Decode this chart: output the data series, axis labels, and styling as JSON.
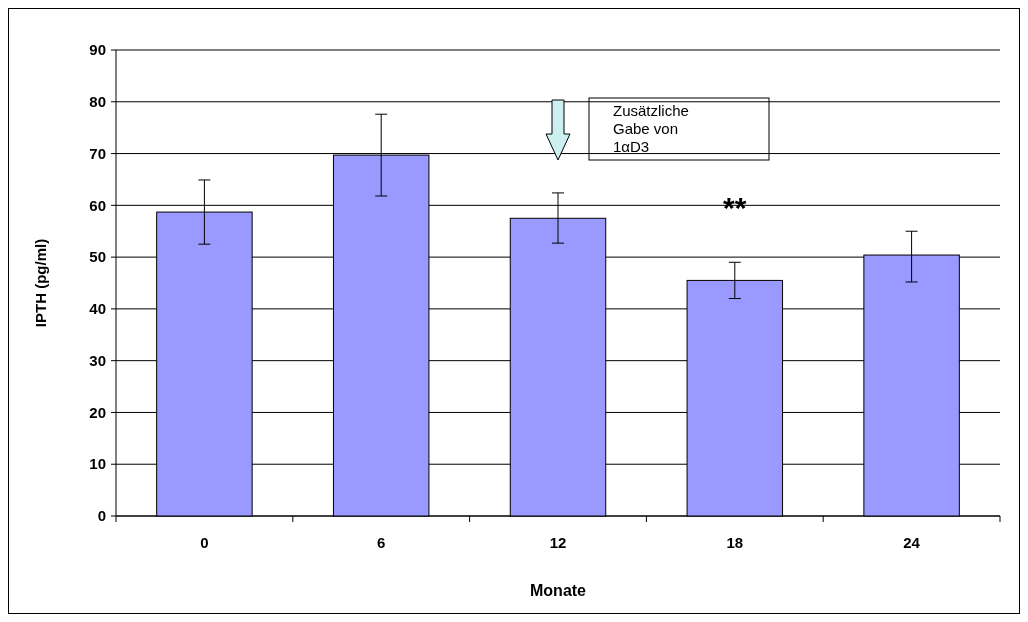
{
  "chart_data": {
    "type": "bar",
    "xlabel": "Monate",
    "ylabel": "IPTH (pg/ml)",
    "categories": [
      "0",
      "6",
      "12",
      "18",
      "24"
    ],
    "values": [
      58.7,
      69.7,
      57.5,
      45.5,
      50.4
    ],
    "color": "#9999ff",
    "errors": [
      [
        52.5,
        64.9
      ],
      [
        61.8,
        77.6
      ],
      [
        52.7,
        62.4
      ],
      [
        42,
        49
      ],
      [
        45.2,
        55
      ]
    ],
    "ylim": [
      0,
      90
    ],
    "yticks": [
      0,
      10,
      20,
      30,
      40,
      50,
      60,
      70,
      80,
      90
    ],
    "grid": "y",
    "annotations": [
      "Zusätzliche\nGabe von\n1αD3",
      "**"
    ]
  }
}
